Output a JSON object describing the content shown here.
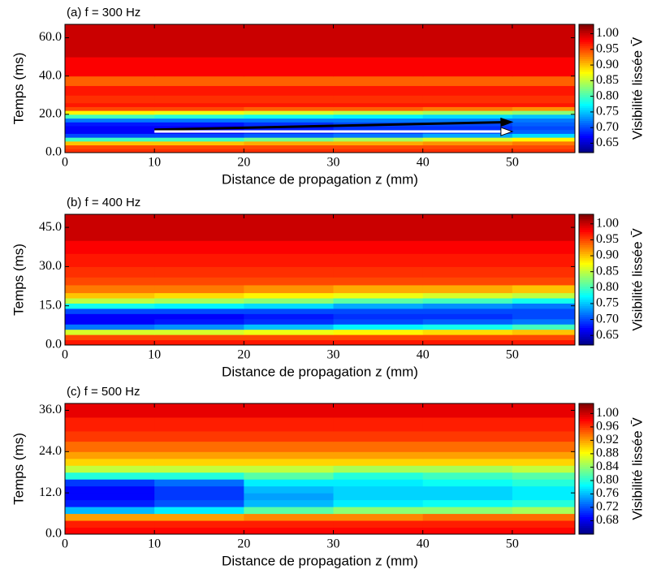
{
  "chart_data": [
    {
      "type": "heatmap",
      "title": "(a) f = 300 Hz",
      "xlabel": "Distance de propagation z (mm)",
      "ylabel": "Temps (ms)",
      "colorbar_label": "Visibilité lissée V̄",
      "colormap": "jet",
      "xlim": [
        0,
        57
      ],
      "xticks": [
        0,
        10,
        20,
        30,
        40,
        50
      ],
      "ylim": [
        0,
        67
      ],
      "yticks": [
        {
          "value": 0,
          "label": "0.0"
        },
        {
          "value": 20,
          "label": "20.0"
        },
        {
          "value": 40,
          "label": "40.0"
        },
        {
          "value": 60,
          "label": "60.0"
        }
      ],
      "clim": [
        0.62,
        1.03
      ],
      "cticks": [
        {
          "value": 1,
          "label": "1.00"
        },
        0.95,
        {
          "value": 0.9,
          "label": "0.90"
        },
        0.85,
        {
          "value": 0.8,
          "label": "0.80"
        },
        0.75,
        {
          "value": 0.7,
          "label": "0.70"
        },
        0.65
      ],
      "xbins": [
        0,
        10,
        20,
        30,
        40,
        50,
        57
      ],
      "ybins": [
        0,
        2,
        4,
        6,
        8,
        10,
        12,
        14,
        16,
        18,
        20,
        22,
        24,
        26,
        30,
        35,
        40,
        50,
        67
      ],
      "values": [
        [
          0.96,
          0.96,
          0.96,
          0.96,
          0.96,
          0.96
        ],
        [
          0.95,
          0.95,
          0.95,
          0.95,
          0.95,
          0.95
        ],
        [
          0.9,
          0.9,
          0.91,
          0.91,
          0.92,
          0.93
        ],
        [
          0.8,
          0.8,
          0.82,
          0.84,
          0.86,
          0.88
        ],
        [
          0.7,
          0.7,
          0.71,
          0.72,
          0.74,
          0.76
        ],
        [
          0.67,
          0.67,
          0.68,
          0.69,
          0.7,
          0.71
        ],
        [
          0.67,
          0.67,
          0.68,
          0.69,
          0.69,
          0.7
        ],
        [
          0.68,
          0.68,
          0.69,
          0.7,
          0.7,
          0.71
        ],
        [
          0.72,
          0.72,
          0.72,
          0.72,
          0.72,
          0.72
        ],
        [
          0.8,
          0.79,
          0.78,
          0.77,
          0.76,
          0.75
        ],
        [
          0.88,
          0.87,
          0.86,
          0.85,
          0.84,
          0.83
        ],
        [
          0.95,
          0.95,
          0.94,
          0.94,
          0.93,
          0.92
        ],
        [
          0.97,
          0.97,
          0.97,
          0.97,
          0.97,
          0.97
        ],
        [
          0.96,
          0.96,
          0.96,
          0.96,
          0.96,
          0.96
        ],
        [
          0.97,
          0.97,
          0.97,
          0.97,
          0.97,
          0.97
        ],
        [
          0.94,
          0.94,
          0.94,
          0.94,
          0.94,
          0.94
        ],
        [
          0.98,
          0.98,
          0.98,
          0.98,
          0.98,
          0.98
        ],
        [
          1.0,
          1.0,
          1.0,
          1.0,
          1.0,
          1.0
        ]
      ],
      "arrows": [
        {
          "from": [
            10,
            12
          ],
          "to": [
            50,
            16
          ],
          "color": "#000000"
        },
        {
          "from": [
            10,
            11
          ],
          "to": [
            50,
            11
          ],
          "color": "#ffffff"
        }
      ]
    },
    {
      "type": "heatmap",
      "title": "(b) f = 400 Hz",
      "xlabel": "Distance de propagation z (mm)",
      "ylabel": "Temps (ms)",
      "colorbar_label": "Visibilité lissée V̄",
      "colormap": "jet",
      "xlim": [
        0,
        57
      ],
      "xticks": [
        0,
        10,
        20,
        30,
        40,
        50
      ],
      "ylim": [
        0,
        50
      ],
      "yticks": [
        {
          "value": 0,
          "label": "0.0"
        },
        {
          "value": 15,
          "label": "15.0"
        },
        {
          "value": 30,
          "label": "30.0"
        },
        {
          "value": 45,
          "label": "45.0"
        }
      ],
      "clim": [
        0.62,
        1.03
      ],
      "cticks": [
        {
          "value": 1,
          "label": "1.00"
        },
        0.95,
        {
          "value": 0.9,
          "label": "0.90"
        },
        0.85,
        {
          "value": 0.8,
          "label": "0.80"
        },
        0.75,
        {
          "value": 0.7,
          "label": "0.70"
        },
        0.65
      ],
      "xbins": [
        0,
        10,
        20,
        30,
        40,
        50,
        57
      ],
      "ybins": [
        0,
        2,
        4,
        6,
        8,
        10,
        12,
        14,
        16,
        18,
        20,
        23,
        26,
        30,
        35,
        40,
        50
      ],
      "values": [
        [
          0.97,
          0.97,
          0.97,
          0.97,
          0.97,
          0.97
        ],
        [
          0.95,
          0.95,
          0.95,
          0.95,
          0.95,
          0.95
        ],
        [
          0.86,
          0.86,
          0.87,
          0.88,
          0.89,
          0.9
        ],
        [
          0.72,
          0.73,
          0.75,
          0.77,
          0.78,
          0.8
        ],
        [
          0.67,
          0.68,
          0.69,
          0.7,
          0.71,
          0.72
        ],
        [
          0.67,
          0.67,
          0.68,
          0.69,
          0.69,
          0.7
        ],
        [
          0.7,
          0.7,
          0.7,
          0.7,
          0.7,
          0.7
        ],
        [
          0.78,
          0.77,
          0.76,
          0.74,
          0.73,
          0.72
        ],
        [
          0.85,
          0.84,
          0.83,
          0.81,
          0.8,
          0.78
        ],
        [
          0.9,
          0.89,
          0.88,
          0.87,
          0.86,
          0.85
        ],
        [
          0.93,
          0.93,
          0.92,
          0.91,
          0.91,
          0.9
        ],
        [
          0.95,
          0.95,
          0.95,
          0.95,
          0.95,
          0.95
        ],
        [
          0.96,
          0.96,
          0.96,
          0.96,
          0.96,
          0.96
        ],
        [
          0.97,
          0.97,
          0.97,
          0.97,
          0.97,
          0.97
        ],
        [
          0.98,
          0.98,
          0.98,
          0.98,
          0.98,
          0.98
        ],
        [
          1.0,
          1.0,
          1.0,
          1.0,
          1.0,
          1.0
        ]
      ]
    },
    {
      "type": "heatmap",
      "title": "(c) f = 500 Hz",
      "xlabel": "Distance de propagation z (mm)",
      "ylabel": "Temps (ms)",
      "colorbar_label": "Visibilité lissée V̄",
      "colormap": "jet",
      "xlim": [
        0,
        57
      ],
      "xticks": [
        0,
        10,
        20,
        30,
        40,
        50
      ],
      "ylim": [
        0,
        38
      ],
      "yticks": [
        {
          "value": 0,
          "label": "0.0"
        },
        {
          "value": 12,
          "label": "12.0"
        },
        {
          "value": 24,
          "label": "24.0"
        },
        {
          "value": 36,
          "label": "36.0"
        }
      ],
      "clim": [
        0.64,
        1.03
      ],
      "cticks": [
        {
          "value": 1,
          "label": "1.00"
        },
        0.96,
        0.92,
        0.88,
        0.84,
        {
          "value": 0.8,
          "label": "0.80"
        },
        0.76,
        0.72,
        0.68
      ],
      "xbins": [
        0,
        10,
        20,
        30,
        40,
        50,
        57
      ],
      "ybins": [
        0,
        2,
        4,
        6,
        8,
        10,
        12,
        14,
        16,
        18,
        20,
        22,
        24,
        27,
        30,
        34,
        38
      ],
      "values": [
        [
          0.98,
          0.98,
          0.98,
          0.98,
          0.98,
          0.98
        ],
        [
          0.97,
          0.97,
          0.97,
          0.97,
          0.97,
          0.97
        ],
        [
          0.92,
          0.92,
          0.93,
          0.93,
          0.94,
          0.94
        ],
        [
          0.76,
          0.78,
          0.82,
          0.84,
          0.84,
          0.85
        ],
        [
          0.7,
          0.72,
          0.76,
          0.78,
          0.79,
          0.8
        ],
        [
          0.69,
          0.71,
          0.75,
          0.77,
          0.77,
          0.78
        ],
        [
          0.69,
          0.71,
          0.76,
          0.77,
          0.77,
          0.78
        ],
        [
          0.71,
          0.73,
          0.78,
          0.78,
          0.79,
          0.8
        ],
        [
          0.8,
          0.8,
          0.82,
          0.8,
          0.81,
          0.82
        ],
        [
          0.86,
          0.86,
          0.86,
          0.85,
          0.85,
          0.86
        ],
        [
          0.9,
          0.9,
          0.9,
          0.9,
          0.9,
          0.9
        ],
        [
          0.92,
          0.92,
          0.92,
          0.92,
          0.92,
          0.92
        ],
        [
          0.94,
          0.94,
          0.94,
          0.94,
          0.94,
          0.94
        ],
        [
          0.96,
          0.96,
          0.96,
          0.96,
          0.96,
          0.96
        ],
        [
          0.97,
          0.97,
          0.97,
          0.97,
          0.97,
          0.97
        ],
        [
          0.99,
          0.99,
          0.99,
          0.99,
          0.99,
          0.99
        ]
      ]
    }
  ]
}
